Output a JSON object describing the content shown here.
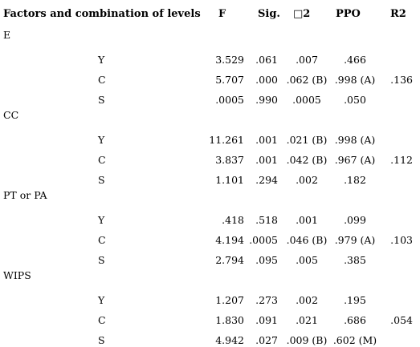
{
  "table": {
    "headers": {
      "factor": "Factors and combination of levels",
      "f": "F",
      "sig": "Sig.",
      "eta": "□2",
      "ppo": "PPO",
      "r2": "R2"
    },
    "groups": [
      {
        "name": "E",
        "rows": [
          {
            "level": "Y",
            "f": "3.529",
            "sig": ".061",
            "eta": ".007",
            "ppo": ".466",
            "r2": ""
          },
          {
            "level": "C",
            "f": "5.707",
            "sig": ".000",
            "eta": ".062 (B)",
            "ppo": ".998 (A)",
            "r2": ".136"
          },
          {
            "level": "S",
            "f": ".0005",
            "sig": ".990",
            "eta": ".0005",
            "ppo": ".050",
            "r2": ""
          }
        ]
      },
      {
        "name": "CC",
        "rows": [
          {
            "level": "Y",
            "f": "11.261",
            "sig": ".001",
            "eta": ".021 (B)",
            "ppo": ".998 (A)",
            "r2": ""
          },
          {
            "level": "C",
            "f": "3.837",
            "sig": ".001",
            "eta": ".042 (B)",
            "ppo": ".967 (A)",
            "r2": ".112"
          },
          {
            "level": "S",
            "f": "1.101",
            "sig": ".294",
            "eta": ".002",
            "ppo": ".182",
            "r2": ""
          }
        ]
      },
      {
        "name": "PT or PA",
        "rows": [
          {
            "level": "Y",
            "f": ".418",
            "sig": ".518",
            "eta": ".001",
            "ppo": ".099",
            "r2": ""
          },
          {
            "level": "C",
            "f": "4.194",
            "sig": ".0005",
            "eta": ".046 (B)",
            "ppo": ".979 (A)",
            "r2": ".103"
          },
          {
            "level": "S",
            "f": "2.794",
            "sig": ".095",
            "eta": ".005",
            "ppo": ".385",
            "r2": ""
          }
        ]
      },
      {
        "name": "WIPS",
        "rows": [
          {
            "level": "Y",
            "f": "1.207",
            "sig": ".273",
            "eta": ".002",
            "ppo": ".195",
            "r2": ""
          },
          {
            "level": "C",
            "f": "1.830",
            "sig": ".091",
            "eta": ".021",
            "ppo": ".686",
            "r2": ".054"
          },
          {
            "level": "S",
            "f": "4.942",
            "sig": ".027",
            "eta": ".009 (B)",
            "ppo": ".602 (M)",
            "r2": ""
          }
        ]
      }
    ]
  }
}
